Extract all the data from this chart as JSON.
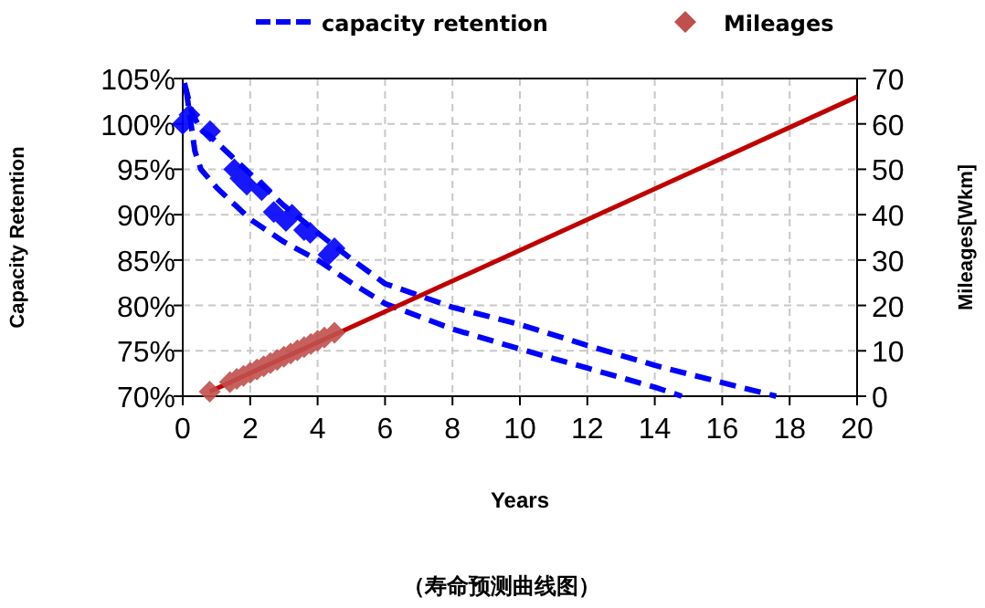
{
  "chart_data": {
    "type": "line",
    "xlabel": "Years",
    "ylabel": "Capacity Retention",
    "y2label": "Mileages[Wkm]",
    "xlim": [
      0,
      20
    ],
    "xticks": [
      0,
      2,
      4,
      6,
      8,
      10,
      12,
      14,
      16,
      18,
      20
    ],
    "ylim": [
      70,
      105
    ],
    "yticks": [
      {
        "value": 70,
        "label": "70%"
      },
      {
        "value": 75,
        "label": "75%"
      },
      {
        "value": 80,
        "label": "80%"
      },
      {
        "value": 85,
        "label": "85%"
      },
      {
        "value": 90,
        "label": "90%"
      },
      {
        "value": 95,
        "label": "95%"
      },
      {
        "value": 100,
        "label": "100%"
      },
      {
        "value": 105,
        "label": "105%"
      }
    ],
    "y2lim": [
      0,
      70
    ],
    "y2ticks": [
      0,
      10,
      20,
      30,
      40,
      50,
      60,
      70
    ],
    "grid": true,
    "legend": "top",
    "series": [
      {
        "name": "capacity retention",
        "line_style": "dashed",
        "marker": "none",
        "color": "#0000ff",
        "x": [
          0.05,
          0.27,
          0.54,
          0.8,
          1.4,
          2,
          3,
          4,
          5,
          6,
          8,
          10,
          12,
          14,
          16,
          17.6
        ],
        "values": [
          104.5,
          101.3,
          99.3,
          98.7,
          96.6,
          94.5,
          91,
          88,
          85.1,
          82.4,
          79.8,
          77.9,
          75.6,
          73.4,
          71.5,
          70
        ]
      },
      {
        "line_style": "dashed",
        "marker": "none",
        "color": "#0000ff",
        "x": [
          0.1,
          0.36,
          0.54,
          1,
          2,
          3,
          4,
          5,
          6,
          8,
          10,
          12,
          14,
          14.8
        ],
        "values": [
          103.8,
          97,
          95,
          93,
          89.5,
          87,
          85,
          82.5,
          80.2,
          77.4,
          75.2,
          73.1,
          71,
          70
        ]
      },
      {
        "type": "scatter",
        "marker": "diamond",
        "color": "#0000ff",
        "x": [
          0,
          0.2,
          0.81,
          1.53,
          1.71,
          1.9,
          2.34,
          2.7,
          3.06,
          3.24,
          3.6,
          3.78,
          4.32,
          4.5
        ],
        "values": [
          100,
          101,
          99.2,
          95,
          94,
          93.3,
          92.7,
          90.3,
          89.3,
          90,
          88.3,
          88,
          85.6,
          86.3
        ]
      },
      {
        "axis": "y2",
        "line_style": "solid",
        "marker": "none",
        "color": "#c00000",
        "x": [
          0.8,
          20
        ],
        "values": [
          1,
          66
        ]
      },
      {
        "name": "Mileages",
        "type": "scatter",
        "axis": "y2",
        "marker": "diamond",
        "color": "#c0504d",
        "x": [
          0.8,
          1.4,
          1.6,
          1.8,
          2.0,
          2.2,
          2.4,
          2.6,
          2.8,
          3.0,
          3.2,
          3.4,
          3.6,
          3.8,
          4.0,
          4.2,
          4.5
        ],
        "values": [
          1,
          3.1,
          3.8,
          4.5,
          5.2,
          5.9,
          6.6,
          7.3,
          8,
          8.7,
          9.4,
          10.1,
          10.8,
          11.5,
          12.2,
          12.9,
          14
        ]
      }
    ],
    "annotations": [
      "（寿命预测曲线图）"
    ]
  }
}
